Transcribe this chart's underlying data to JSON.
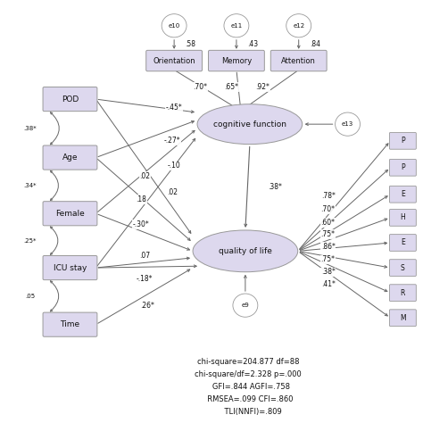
{
  "background": "#ffffff",
  "box_fill": "#ddd8ee",
  "box_edge": "#999999",
  "ellipse_fill": "#ddd8ee",
  "ellipse_edge": "#999999",
  "arrow_color": "#666666",
  "text_color": "#111111",
  "stats_text": "chi-square=204.877 df=88\nchi-square/df=2.328 p=.000\n   GFI=.844 AGFI=.758\n  RMSEA=.099 CFI=.860\n    TLI(NNFI)=.809",
  "left_boxes": [
    "POD",
    "Age",
    "Female",
    "ICU stay",
    "Time"
  ],
  "top_boxes": [
    "Orientation",
    "Memory",
    "Attention"
  ],
  "right_boxes": [
    "P",
    "P",
    "E",
    "H",
    "E",
    "S",
    "R",
    "M"
  ],
  "error_top_labels": [
    "e10",
    "e11",
    "e12"
  ],
  "e13_label": "e13",
  "e9_label": "e9",
  "top_loading_vals": [
    ".58",
    ".43",
    ".84"
  ],
  "top_to_cog_labels": [
    ".70*",
    ".65*",
    ".92*"
  ],
  "cog_to_qol_label": ".38*",
  "path_labels_cog": [
    "-.45*",
    "-.27*",
    "-.10"
  ],
  "path_labels_qol": [
    ".02",
    ".18",
    "-.30*",
    ".07",
    ".02",
    "-.18*",
    ".26*"
  ],
  "corr_labels": [
    ".38*",
    ".34*",
    ".25*",
    ".05"
  ],
  "qol_loadings": [
    ".78*",
    ".70*",
    ".60*",
    ".75*",
    ".86*",
    ".75*",
    ".38*",
    ".41*"
  ],
  "figsize": [
    4.74,
    4.74
  ],
  "dpi": 100
}
